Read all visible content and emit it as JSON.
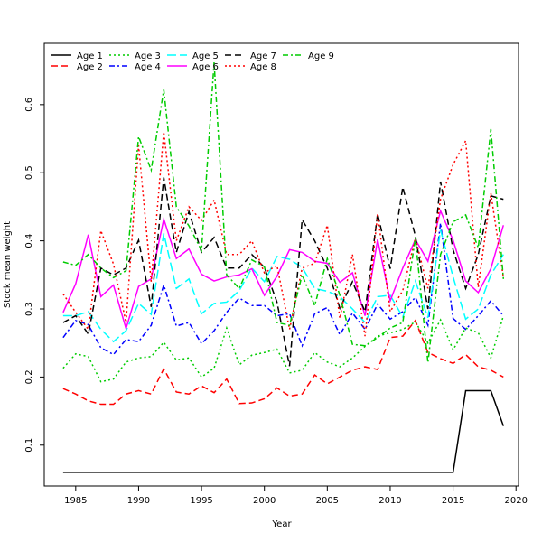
{
  "chart_data": {
    "type": "line",
    "xlabel": "Year",
    "ylabel": "Stock mean weight",
    "xlim": [
      1982.5,
      2020.2
    ],
    "ylim": [
      0.04,
      0.69
    ],
    "x_ticks": [
      1985,
      1990,
      1995,
      2000,
      2005,
      2010,
      2015,
      2020
    ],
    "y_ticks": [
      0.1,
      0.2,
      0.3,
      0.4,
      0.5,
      0.6
    ],
    "grid": false,
    "legend_position": "top-left",
    "x": [
      1984,
      1985,
      1986,
      1987,
      1988,
      1989,
      1990,
      1991,
      1992,
      1993,
      1994,
      1995,
      1996,
      1997,
      1998,
      1999,
      2000,
      2001,
      2002,
      2003,
      2004,
      2005,
      2006,
      2007,
      2008,
      2009,
      2010,
      2011,
      2012,
      2013,
      2014,
      2015,
      2016,
      2017,
      2018,
      2019
    ],
    "series": [
      {
        "name": "Age 1",
        "color": "#000000",
        "dash": "solid",
        "values": [
          0.06,
          0.06,
          0.06,
          0.06,
          0.06,
          0.06,
          0.06,
          0.06,
          0.06,
          0.06,
          0.06,
          0.06,
          0.06,
          0.06,
          0.06,
          0.06,
          0.06,
          0.06,
          0.06,
          0.06,
          0.06,
          0.06,
          0.06,
          0.06,
          0.06,
          0.06,
          0.06,
          0.06,
          0.06,
          0.06,
          0.06,
          0.06,
          0.18,
          0.18,
          0.18,
          0.128
        ]
      },
      {
        "name": "Age 2",
        "color": "#ff0000",
        "dash": "dashed",
        "values": [
          0.183,
          0.175,
          0.165,
          0.16,
          0.16,
          0.175,
          0.18,
          0.175,
          0.212,
          0.178,
          0.175,
          0.187,
          0.177,
          0.197,
          0.161,
          0.162,
          0.168,
          0.184,
          0.172,
          0.175,
          0.203,
          0.19,
          0.2,
          0.21,
          0.215,
          0.211,
          0.258,
          0.26,
          0.283,
          0.236,
          0.227,
          0.22,
          0.233,
          0.215,
          0.21,
          0.2
        ]
      },
      {
        "name": "Age 3",
        "color": "#00cc00",
        "dash": "dotted",
        "values": [
          0.213,
          0.234,
          0.23,
          0.193,
          0.197,
          0.222,
          0.228,
          0.23,
          0.251,
          0.225,
          0.228,
          0.2,
          0.213,
          0.272,
          0.218,
          0.232,
          0.236,
          0.241,
          0.206,
          0.21,
          0.236,
          0.222,
          0.215,
          0.228,
          0.245,
          0.26,
          0.265,
          0.27,
          0.281,
          0.25,
          0.284,
          0.24,
          0.272,
          0.265,
          0.228,
          0.29
        ]
      },
      {
        "name": "Age 4",
        "color": "#0000ff",
        "dash": "dashdot",
        "values": [
          0.258,
          0.283,
          0.277,
          0.243,
          0.233,
          0.255,
          0.252,
          0.276,
          0.335,
          0.275,
          0.28,
          0.249,
          0.268,
          0.295,
          0.316,
          0.305,
          0.305,
          0.29,
          0.293,
          0.246,
          0.293,
          0.302,
          0.262,
          0.294,
          0.27,
          0.307,
          0.285,
          0.296,
          0.317,
          0.276,
          0.426,
          0.286,
          0.27,
          0.29,
          0.312,
          0.29
        ]
      },
      {
        "name": "Age 5",
        "color": "#00ffff",
        "dash": "longdash",
        "values": [
          0.29,
          0.29,
          0.296,
          0.27,
          0.252,
          0.268,
          0.308,
          0.292,
          0.411,
          0.33,
          0.344,
          0.293,
          0.308,
          0.31,
          0.327,
          0.36,
          0.34,
          0.377,
          0.373,
          0.361,
          0.33,
          0.326,
          0.318,
          0.3,
          0.28,
          0.318,
          0.32,
          0.288,
          0.341,
          0.287,
          0.416,
          0.347,
          0.285,
          0.3,
          0.35,
          0.38
        ]
      },
      {
        "name": "Age 6",
        "color": "#ff00ff",
        "dash": "solid",
        "values": [
          0.295,
          0.337,
          0.409,
          0.318,
          0.335,
          0.271,
          0.333,
          0.344,
          0.432,
          0.374,
          0.388,
          0.351,
          0.341,
          0.347,
          0.35,
          0.359,
          0.32,
          0.348,
          0.387,
          0.383,
          0.37,
          0.367,
          0.339,
          0.353,
          0.29,
          0.402,
          0.312,
          0.36,
          0.402,
          0.37,
          0.444,
          0.401,
          0.341,
          0.324,
          0.359,
          0.423
        ]
      },
      {
        "name": "Age 7",
        "color": "#000000",
        "dash": "dashed",
        "values": [
          0.28,
          0.29,
          0.263,
          0.36,
          0.35,
          0.36,
          0.401,
          0.303,
          0.493,
          0.383,
          0.443,
          0.383,
          0.405,
          0.36,
          0.36,
          0.38,
          0.361,
          0.31,
          0.216,
          0.431,
          0.4,
          0.36,
          0.301,
          0.34,
          0.296,
          0.44,
          0.359,
          0.479,
          0.407,
          0.3,
          0.487,
          0.387,
          0.33,
          0.38,
          0.466,
          0.461
        ]
      },
      {
        "name": "Age 8",
        "color": "#ff0000",
        "dash": "dotted",
        "values": [
          0.322,
          0.295,
          0.27,
          0.415,
          0.366,
          0.28,
          0.54,
          0.34,
          0.56,
          0.4,
          0.45,
          0.43,
          0.46,
          0.38,
          0.38,
          0.4,
          0.353,
          0.364,
          0.27,
          0.36,
          0.367,
          0.423,
          0.286,
          0.38,
          0.26,
          0.44,
          0.296,
          0.327,
          0.404,
          0.33,
          0.461,
          0.512,
          0.547,
          0.332,
          0.47,
          0.346
        ]
      },
      {
        "name": "Age 9",
        "color": "#00cc00",
        "dash": "dashdot",
        "values": [
          0.369,
          0.364,
          0.38,
          0.36,
          0.346,
          0.356,
          0.553,
          0.504,
          0.622,
          0.45,
          0.422,
          0.386,
          0.662,
          0.35,
          0.33,
          0.372,
          0.362,
          0.28,
          0.276,
          0.35,
          0.305,
          0.374,
          0.32,
          0.248,
          0.246,
          0.258,
          0.272,
          0.28,
          0.404,
          0.221,
          0.38,
          0.428,
          0.438,
          0.39,
          0.564,
          0.344
        ]
      }
    ]
  }
}
